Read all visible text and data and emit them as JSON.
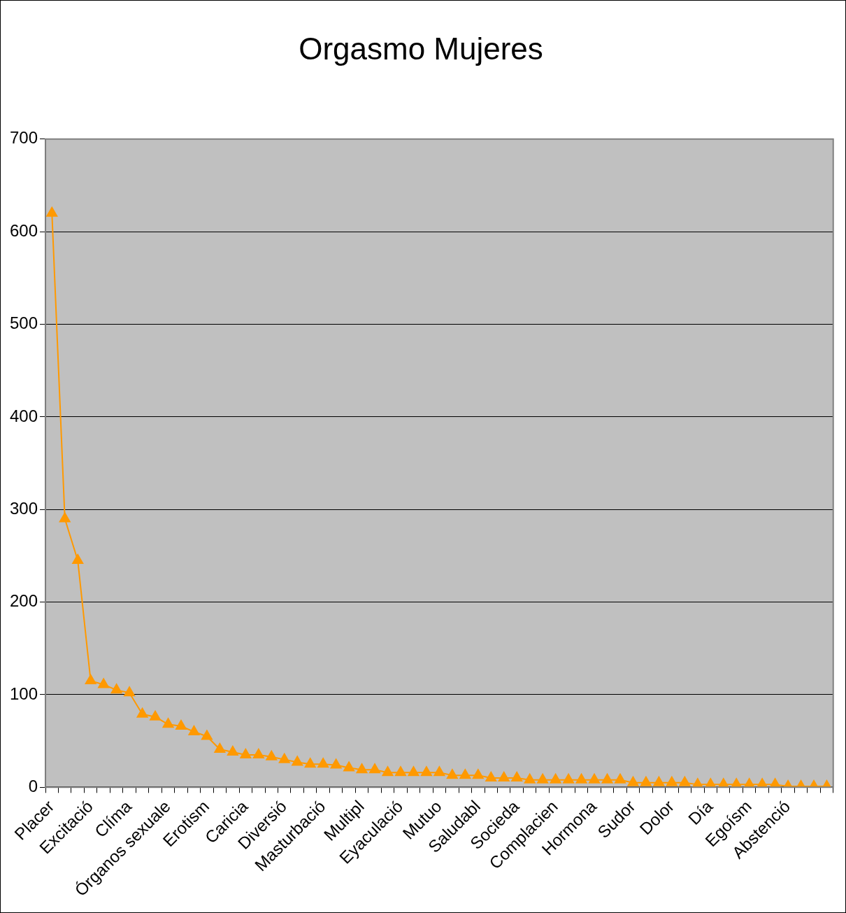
{
  "chart_data": {
    "type": "line",
    "title": "Orgasmo Mujeres",
    "categories": [
      "Placer",
      null,
      null,
      "Excitació",
      null,
      null,
      "Clíma",
      null,
      null,
      "Órganos sexuale",
      null,
      null,
      "Erotism",
      null,
      null,
      "Caricia",
      null,
      null,
      "Diversió",
      null,
      null,
      "Masturbació",
      null,
      null,
      "Multipl",
      null,
      null,
      "Eyaculació",
      null,
      null,
      "Mutuo",
      null,
      null,
      "Saludabl",
      null,
      null,
      "Socieda",
      null,
      null,
      "Complacien",
      null,
      null,
      "Hormona",
      null,
      null,
      "Sudor",
      null,
      null,
      "Dolor",
      null,
      null,
      "Día",
      null,
      null,
      "Egoísm",
      null,
      null,
      "Abstenció",
      null,
      null,
      null
    ],
    "series": [
      {
        "color": "#ff9900",
        "values": [
          620,
          290,
          245,
          115,
          111,
          105,
          102,
          79,
          76,
          68,
          66,
          60,
          55,
          41,
          38,
          35,
          35,
          33,
          30,
          27,
          25,
          25,
          24,
          21,
          19,
          19,
          16,
          16,
          16,
          16,
          16,
          13,
          13,
          13,
          10,
          10,
          10,
          8,
          8,
          8,
          8,
          8,
          8,
          8,
          8,
          5,
          5,
          5,
          5,
          5,
          3,
          3,
          3,
          3,
          3,
          3,
          3,
          1,
          1,
          1,
          1
        ]
      }
    ],
    "ylim": [
      0,
      700
    ],
    "yticks": [
      0,
      100,
      200,
      300,
      400,
      500,
      600,
      700
    ],
    "grid": "y",
    "legend": false,
    "marker": "triangle",
    "line_style": "solid"
  }
}
